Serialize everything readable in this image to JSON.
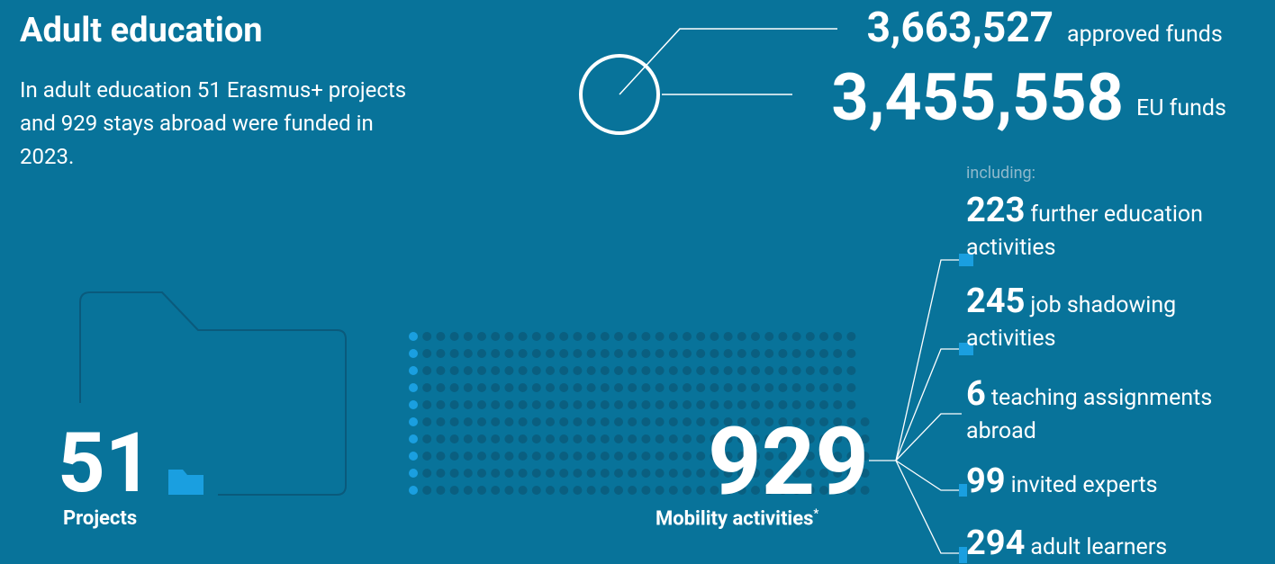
{
  "title": "Adult education",
  "intro": "In adult education 51 Erasmus+ projects and 929 stays abroad were funded in 2023.",
  "funds": [
    {
      "value": "3,663,527",
      "label": "approved funds"
    },
    {
      "value": "3,455,558",
      "label": "EU funds"
    }
  ],
  "breakdown": {
    "heading": "including:",
    "items": [
      {
        "value": "223",
        "label": "further education activities"
      },
      {
        "value": "245",
        "label": "job shadowing activities"
      },
      {
        "value": "6",
        "label": "teaching assignments abroad"
      },
      {
        "value": "99",
        "label": "invited experts"
      },
      {
        "value": "294",
        "label": "adult learners"
      }
    ]
  },
  "projects": {
    "value": "51",
    "label": "Projects"
  },
  "mobility": {
    "value": "929",
    "label": "Mobility activities",
    "footnote_mark": "*"
  }
}
